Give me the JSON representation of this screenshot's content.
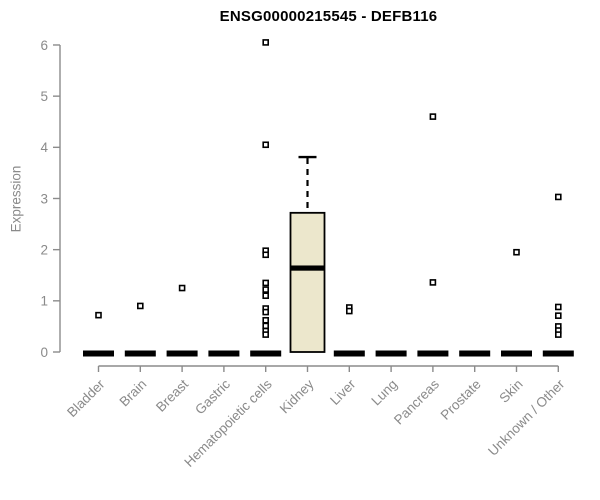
{
  "chart_data": {
    "type": "boxplot",
    "title": "ENSG00000215545 - DEFB116",
    "xlabel": "",
    "ylabel": "Expression",
    "ylim": [
      0,
      6
    ],
    "yticks": [
      0,
      1,
      2,
      3,
      4,
      5,
      6
    ],
    "grid": false,
    "legend": false,
    "categories": [
      "Bladder",
      "Brain",
      "Breast",
      "Gastric",
      "Hematopoietic cells",
      "Kidney",
      "Liver",
      "Lung",
      "Pancreas",
      "Prostate",
      "Skin",
      "Unknown / Other"
    ],
    "boxes": [
      {
        "category": "Bladder",
        "q1": 0,
        "median": 0,
        "q3": 0,
        "whisker_low": 0,
        "whisker_high": 0,
        "outliers": [
          0.72
        ]
      },
      {
        "category": "Brain",
        "q1": 0,
        "median": 0,
        "q3": 0,
        "whisker_low": 0,
        "whisker_high": 0,
        "outliers": [
          0.9
        ]
      },
      {
        "category": "Breast",
        "q1": 0,
        "median": 0,
        "q3": 0,
        "whisker_low": 0,
        "whisker_high": 0,
        "outliers": [
          1.25
        ]
      },
      {
        "category": "Gastric",
        "q1": 0,
        "median": 0,
        "q3": 0,
        "whisker_low": 0,
        "whisker_high": 0,
        "outliers": []
      },
      {
        "category": "Hematopoietic cells",
        "q1": 0,
        "median": 0,
        "q3": 0,
        "whisker_low": 0,
        "whisker_high": 0,
        "outliers": [
          6.05,
          4.05,
          1.98,
          1.9,
          1.35,
          1.22,
          1.1,
          0.85,
          0.78,
          0.62,
          0.51,
          0.41,
          0.34
        ]
      },
      {
        "category": "Kidney",
        "q1": 0,
        "median": 1.64,
        "q3": 2.72,
        "whisker_low": 0,
        "whisker_high": 3.81,
        "outliers": []
      },
      {
        "category": "Liver",
        "q1": 0,
        "median": 0,
        "q3": 0,
        "whisker_low": 0,
        "whisker_high": 0,
        "outliers": [
          0.87,
          0.8
        ]
      },
      {
        "category": "Lung",
        "q1": 0,
        "median": 0,
        "q3": 0,
        "whisker_low": 0,
        "whisker_high": 0,
        "outliers": []
      },
      {
        "category": "Pancreas",
        "q1": 0,
        "median": 0,
        "q3": 0,
        "whisker_low": 0,
        "whisker_high": 0,
        "outliers": [
          4.6,
          1.36
        ]
      },
      {
        "category": "Prostate",
        "q1": 0,
        "median": 0,
        "q3": 0,
        "whisker_low": 0,
        "whisker_high": 0,
        "outliers": []
      },
      {
        "category": "Skin",
        "q1": 0,
        "median": 0,
        "q3": 0,
        "whisker_low": 0,
        "whisker_high": 0,
        "outliers": [
          1.95
        ]
      },
      {
        "category": "Unknown / Other",
        "q1": 0,
        "median": 0,
        "q3": 0,
        "whisker_low": 0,
        "whisker_high": 0,
        "outliers": [
          3.03,
          0.88,
          0.71,
          0.5,
          0.42,
          0.34
        ]
      }
    ],
    "colors": {
      "background": "#ffffff",
      "box_fill": "#ECE7CC",
      "box_stroke": "#000000",
      "median": "#000000",
      "point_stroke": "#000000",
      "point_fill": "#ffffff",
      "axis": "#8b8b8b",
      "tick_label": "#8a8a8a",
      "title": "#000000"
    }
  }
}
